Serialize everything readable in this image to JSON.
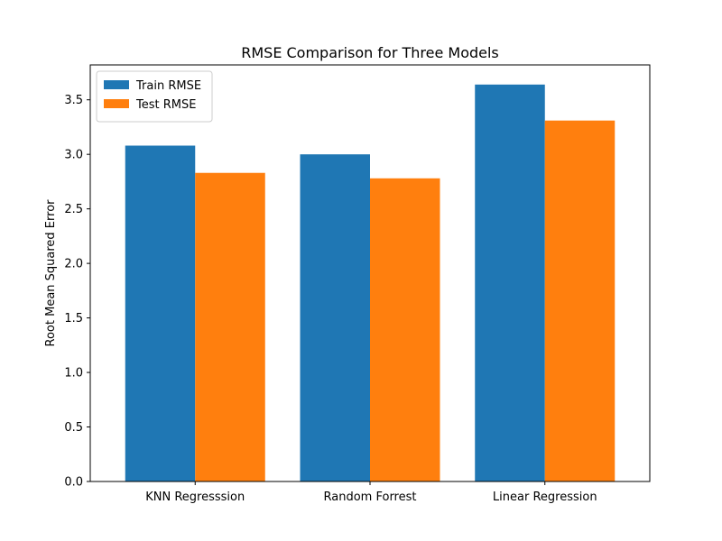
{
  "chart_data": {
    "type": "bar",
    "title": "RMSE Comparison for Three Models",
    "xlabel": "",
    "ylabel": "Root Mean Squared Error",
    "categories": [
      "KNN Regresssion",
      "Random Forrest",
      "Linear Regression"
    ],
    "series": [
      {
        "name": "Train RMSE",
        "values": [
          3.08,
          3.0,
          3.64
        ],
        "color": "#1f77b4"
      },
      {
        "name": "Test RMSE",
        "values": [
          2.83,
          2.78,
          3.31
        ],
        "color": "#ff7f0e"
      }
    ],
    "ylim": [
      0,
      3.82
    ],
    "yticks": [
      "0.0",
      "0.5",
      "1.0",
      "1.5",
      "2.0",
      "2.5",
      "3.0",
      "3.5"
    ],
    "grid": false,
    "legend_position": "top-left"
  }
}
